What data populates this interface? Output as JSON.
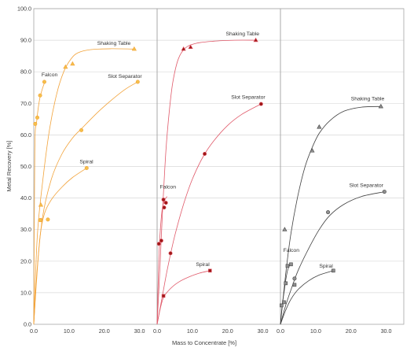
{
  "chart_data": {
    "type": "scatter",
    "ylabel": "Metal Recovery [%]",
    "xlabel": "Mass to Concentrate [%]",
    "ylim": [
      0,
      100
    ],
    "yticks": [
      "0.0",
      "10.0",
      "20.0",
      "30.0",
      "40.0",
      "50.0",
      "60.0",
      "70.0",
      "80.0",
      "90.0",
      "100.0"
    ],
    "xlim": [
      0,
      35
    ],
    "xticks": [
      "0.0",
      "10.0",
      "20.0",
      "30.0"
    ],
    "grid": true,
    "panels": [
      {
        "id": "panel-1",
        "color": "#f2a33a",
        "marker_fill": "#f5c04a",
        "series": [
          {
            "name": "Falcon",
            "marker": "circle",
            "label_at": [
              2.2,
              78.5
            ],
            "points": [
              [
                0.4,
                63.5
              ],
              [
                1.0,
                65.5
              ],
              [
                1.8,
                72.5
              ],
              [
                3.0,
                76.8
              ]
            ],
            "curve": [
              [
                0,
                0
              ],
              [
                0.3,
                55
              ],
              [
                0.8,
                64
              ],
              [
                1.6,
                71
              ],
              [
                2.4,
                74.5
              ],
              [
                3.2,
                77
              ]
            ]
          },
          {
            "name": "Shaking Table",
            "marker": "triangle",
            "label_at": [
              18.0,
              88.5
            ],
            "points": [
              [
                2.0,
                37.8
              ],
              [
                9.0,
                81.5
              ],
              [
                11.0,
                82.5
              ],
              [
                28.5,
                87.2
              ]
            ],
            "curve": [
              [
                0,
                0
              ],
              [
                1.0,
                28
              ],
              [
                2.5,
                45
              ],
              [
                4.5,
                62
              ],
              [
                6.5,
                73
              ],
              [
                8.5,
                80
              ],
              [
                10.5,
                84
              ],
              [
                12.5,
                86
              ],
              [
                16,
                87
              ],
              [
                22,
                87.3
              ],
              [
                28.5,
                87.2
              ]
            ]
          },
          {
            "name": "Slot Separator",
            "marker": "circle",
            "label_at": [
              21.0,
              78.0
            ],
            "points": [
              [
                2.0,
                33.0
              ],
              [
                13.5,
                61.5
              ],
              [
                29.5,
                76.8
              ]
            ],
            "curve": [
              [
                0,
                0
              ],
              [
                1.0,
                18
              ],
              [
                2.5,
                34
              ],
              [
                5,
                46
              ],
              [
                8,
                54
              ],
              [
                11,
                59
              ],
              [
                14,
                62.5
              ],
              [
                18,
                67
              ],
              [
                22,
                71
              ],
              [
                26,
                74.5
              ],
              [
                29.5,
                76.8
              ]
            ]
          },
          {
            "name": "Spiral",
            "marker": "circle",
            "label_at": [
              13.0,
              51.0
            ],
            "points": [
              [
                1.8,
                33.0
              ],
              [
                4.0,
                33.2
              ],
              [
                15.0,
                49.5
              ]
            ],
            "curve": [
              [
                0,
                0
              ],
              [
                0.8,
                14
              ],
              [
                1.8,
                28
              ],
              [
                3,
                35
              ],
              [
                5,
                39.5
              ],
              [
                8,
                43.5
              ],
              [
                11,
                46.5
              ],
              [
                15,
                49.5
              ]
            ]
          }
        ]
      },
      {
        "id": "panel-2",
        "color": "#e05a6a",
        "marker_fill": "#a01818",
        "series": [
          {
            "name": "Shaking Table",
            "marker": "triangle",
            "label_at": [
              19.5,
              91.5
            ],
            "points": [
              [
                7.5,
                87.2
              ],
              [
                9.5,
                87.8
              ],
              [
                28.0,
                90.0
              ]
            ],
            "curve": [
              [
                0,
                0
              ],
              [
                0.8,
                18
              ],
              [
                1.5,
                35
              ],
              [
                2.5,
                55
              ],
              [
                3.5,
                68
              ],
              [
                4.5,
                77
              ],
              [
                6,
                84
              ],
              [
                8,
                87.5
              ],
              [
                11,
                89
              ],
              [
                16,
                89.7
              ],
              [
                22,
                90
              ],
              [
                28,
                90
              ]
            ]
          },
          {
            "name": "Slot Separator",
            "marker": "circle",
            "label_at": [
              21.0,
              71.5
            ],
            "points": [
              [
                3.8,
                22.5
              ],
              [
                13.5,
                54.0
              ],
              [
                29.5,
                69.8
              ]
            ],
            "curve": [
              [
                0,
                0
              ],
              [
                1.5,
                9
              ],
              [
                3,
                18
              ],
              [
                5,
                28
              ],
              [
                7.5,
                38
              ],
              [
                10,
                46
              ],
              [
                13,
                53
              ],
              [
                16,
                58
              ],
              [
                20,
                63
              ],
              [
                24,
                66.5
              ],
              [
                29.5,
                69.8
              ]
            ]
          },
          {
            "name": "Falcon",
            "marker": "circle",
            "label_at": [
              0.8,
              43.0
            ],
            "points": [
              [
                0.5,
                25.5
              ],
              [
                1.2,
                26.5
              ],
              [
                1.8,
                39.5
              ],
              [
                2.0,
                37.0
              ],
              [
                2.5,
                38.5
              ]
            ],
            "curve": [
              [
                0,
                0
              ],
              [
                0.4,
                18
              ],
              [
                0.8,
                28
              ],
              [
                1.2,
                34
              ],
              [
                1.6,
                37.5
              ],
              [
                2.2,
                39.5
              ],
              [
                2.8,
                40.5
              ]
            ]
          },
          {
            "name": "Spiral",
            "marker": "square",
            "label_at": [
              11.0,
              18.5
            ],
            "points": [
              [
                1.8,
                9.0
              ],
              [
                15.0,
                17.0
              ]
            ],
            "curve": [
              [
                0,
                0
              ],
              [
                0.8,
                4.5
              ],
              [
                1.8,
                8.5
              ],
              [
                3.5,
                11
              ],
              [
                6,
                13.3
              ],
              [
                9,
                15
              ],
              [
                12,
                16.2
              ],
              [
                15,
                17
              ]
            ]
          }
        ]
      },
      {
        "id": "panel-3",
        "color": "#404040",
        "marker_fill": "#909090",
        "series": [
          {
            "name": "Shaking Table",
            "marker": "triangle",
            "label_at": [
              20.0,
              71.0
            ],
            "points": [
              [
                1.2,
                30.0
              ],
              [
                9.0,
                55.0
              ],
              [
                11.0,
                62.5
              ],
              [
                28.5,
                69.0
              ]
            ],
            "curve": [
              [
                0,
                0
              ],
              [
                1.5,
                16
              ],
              [
                3,
                29
              ],
              [
                5,
                41
              ],
              [
                7,
                50
              ],
              [
                9,
                56
              ],
              [
                11,
                60.5
              ],
              [
                14,
                64.5
              ],
              [
                18,
                67.5
              ],
              [
                23,
                68.8
              ],
              [
                28.5,
                69
              ]
            ]
          },
          {
            "name": "Slot Separator",
            "marker": "circle",
            "label_at": [
              19.5,
              43.5
            ],
            "points": [
              [
                4.0,
                14.5
              ],
              [
                13.5,
                35.5
              ],
              [
                29.5,
                42.0
              ]
            ],
            "curve": [
              [
                0,
                0
              ],
              [
                1.5,
                6
              ],
              [
                3,
                11
              ],
              [
                5,
                17
              ],
              [
                8,
                24
              ],
              [
                11,
                30
              ],
              [
                14,
                34.5
              ],
              [
                18,
                38
              ],
              [
                23,
                40.5
              ],
              [
                29.5,
                42
              ]
            ]
          },
          {
            "name": "Falcon",
            "marker": "square",
            "label_at": [
              0.8,
              23.0
            ],
            "points": [
              [
                0.3,
                6.0
              ],
              [
                1.0,
                7.0
              ],
              [
                1.5,
                13.0
              ],
              [
                2.0,
                18.5
              ],
              [
                3.0,
                19.0
              ]
            ],
            "curve": [
              [
                0,
                0
              ],
              [
                0.5,
                6
              ],
              [
                1,
                10
              ],
              [
                1.5,
                14
              ],
              [
                2,
                17
              ],
              [
                2.5,
                18.5
              ],
              [
                3,
                19
              ]
            ]
          },
          {
            "name": "Spiral",
            "marker": "square",
            "label_at": [
              11.0,
              18.0
            ],
            "points": [
              [
                4.0,
                12.5
              ],
              [
                15.0,
                17.0
              ]
            ],
            "curve": [
              [
                0,
                0
              ],
              [
                1.5,
                4.5
              ],
              [
                3,
                8
              ],
              [
                5,
                11
              ],
              [
                8,
                13.8
              ],
              [
                11,
                15.6
              ],
              [
                15,
                17
              ]
            ]
          }
        ]
      }
    ]
  }
}
